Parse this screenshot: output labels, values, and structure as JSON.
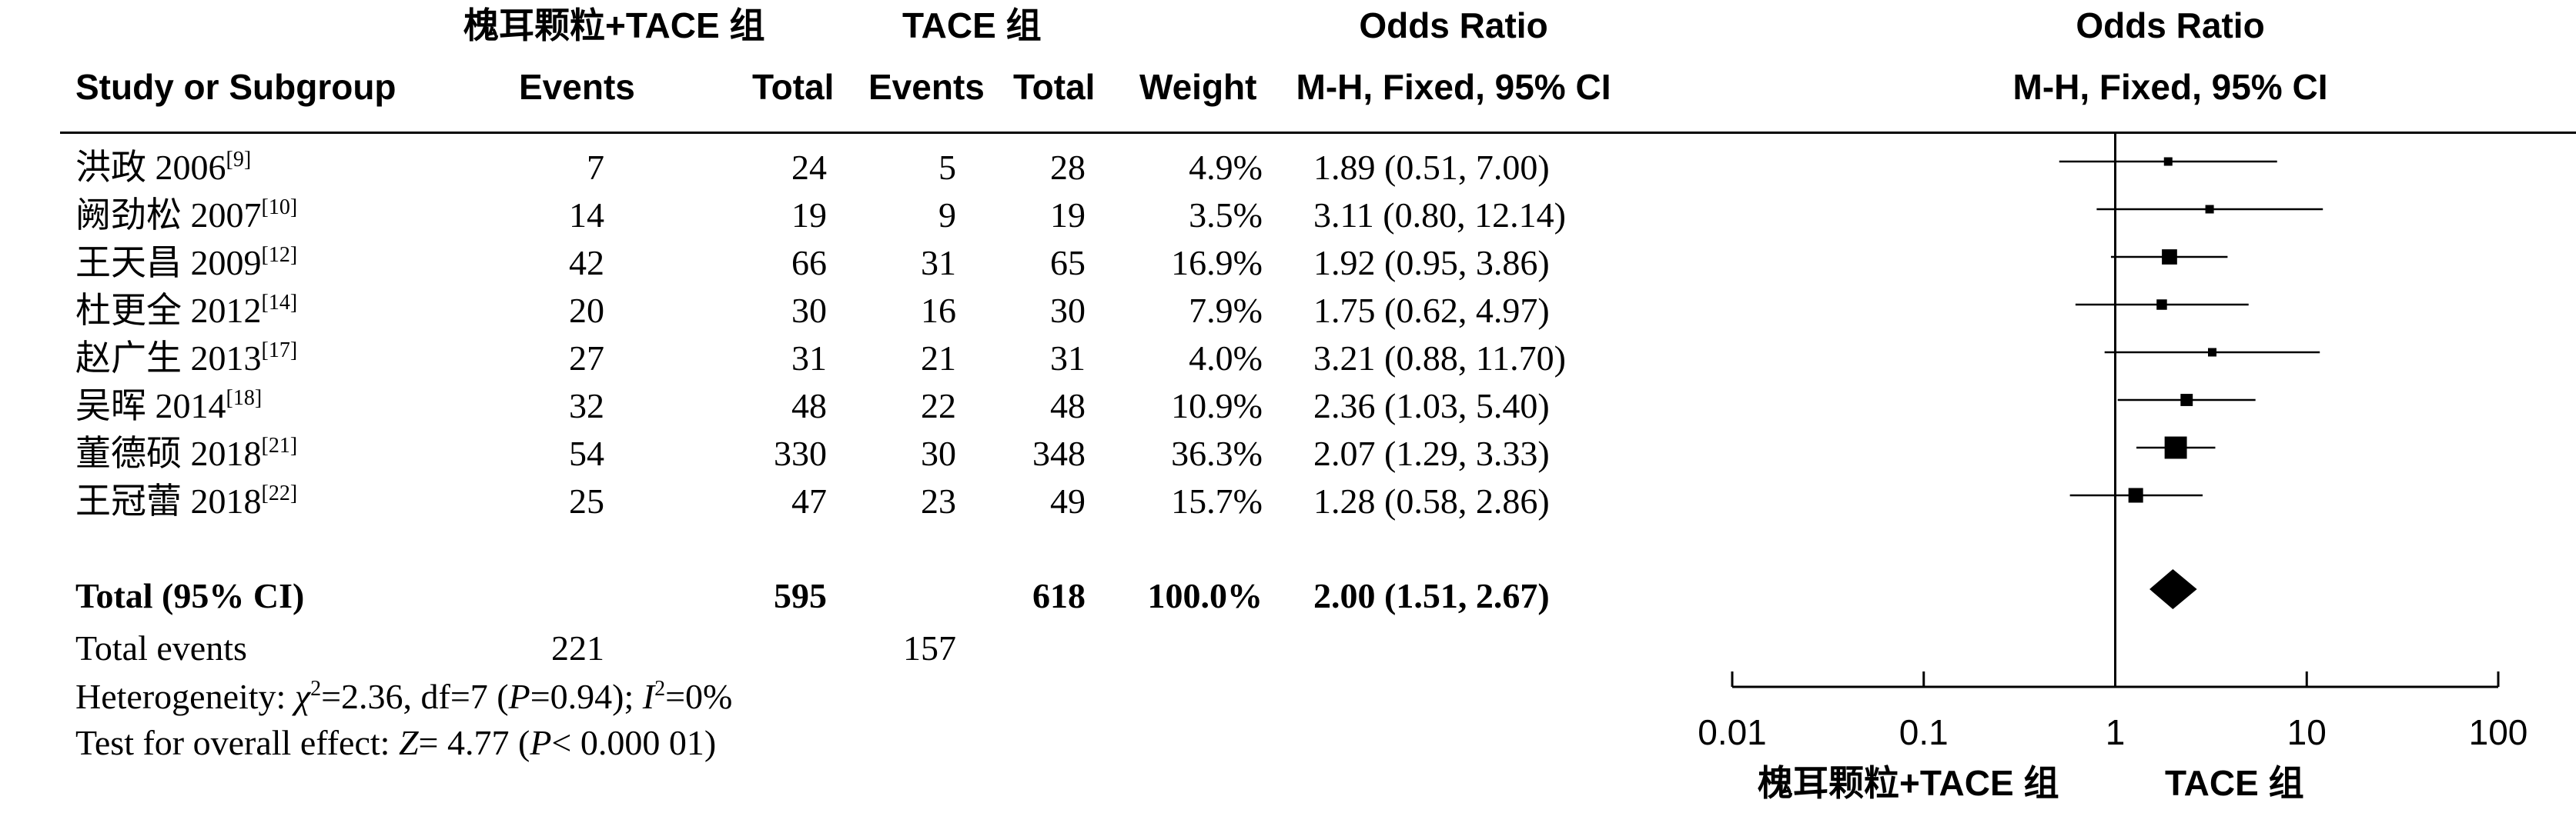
{
  "header": {
    "group_treat": "槐耳颗粒+TACE 组",
    "group_ctrl": "TACE 组",
    "or_top": "Odds Ratio",
    "or_method": "M-H, Fixed, 95% CI",
    "plot_top": "Odds Ratio",
    "plot_method": "M-H, Fixed, 95% CI",
    "col_study": "Study or Subgroup",
    "col_events_t": "Events",
    "col_total_t": "Total",
    "col_events_c": "Events",
    "col_total_c": "Total",
    "col_weight": "Weight"
  },
  "studies": [
    {
      "name": "洪政 2006",
      "ref": "[9]",
      "events_t": "7",
      "total_t": "24",
      "events_c": "5",
      "total_c": "28",
      "weight": "4.9%",
      "or_text": "1.89 (0.51, 7.00)"
    },
    {
      "name": "阙劲松 2007",
      "ref": "[10]",
      "events_t": "14",
      "total_t": "19",
      "events_c": "9",
      "total_c": "19",
      "weight": "3.5%",
      "or_text": "3.11 (0.80, 12.14)"
    },
    {
      "name": "王天昌 2009",
      "ref": "[12]",
      "events_t": "42",
      "total_t": "66",
      "events_c": "31",
      "total_c": "65",
      "weight": "16.9%",
      "or_text": "1.92 (0.95, 3.86)"
    },
    {
      "name": "杜更全 2012",
      "ref": "[14]",
      "events_t": "20",
      "total_t": "30",
      "events_c": "16",
      "total_c": "30",
      "weight": "7.9%",
      "or_text": "1.75 (0.62, 4.97)"
    },
    {
      "name": "赵广生 2013",
      "ref": "[17]",
      "events_t": "27",
      "total_t": "31",
      "events_c": "21",
      "total_c": "31",
      "weight": "4.0%",
      "or_text": "3.21 (0.88, 11.70)"
    },
    {
      "name": "吴晖 2014",
      "ref": "[18]",
      "events_t": "32",
      "total_t": "48",
      "events_c": "22",
      "total_c": "48",
      "weight": "10.9%",
      "or_text": "2.36 (1.03, 5.40)"
    },
    {
      "name": "董德硕 2018",
      "ref": "[21]",
      "events_t": "54",
      "total_t": "330",
      "events_c": "30",
      "total_c": "348",
      "weight": "36.3%",
      "or_text": "2.07 (1.29, 3.33)"
    },
    {
      "name": "王冠蕾 2018",
      "ref": "[22]",
      "events_t": "25",
      "total_t": "47",
      "events_c": "23",
      "total_c": "49",
      "weight": "15.7%",
      "or_text": "1.28 (0.58, 2.86)"
    }
  ],
  "total": {
    "label": "Total (95% CI)",
    "total_t": "595",
    "total_c": "618",
    "weight": "100.0%",
    "or_text": "2.00 (1.51, 2.67)"
  },
  "total_events": {
    "label": "Total events",
    "events_t": "221",
    "events_c": "157"
  },
  "heterogeneity": {
    "label": "Heterogeneity: ",
    "chi": "χ",
    "chi_sup": "2",
    "chi_val": "=2.36, df=7 (",
    "p": "P",
    "p_val": "=0.94); ",
    "i": "I",
    "i_sup": "2",
    "i_val": "=0%"
  },
  "overall": {
    "label": "Test for overall effect: ",
    "z": "Z",
    "z_val": "= 4.77 (",
    "p": "P",
    "p_val": "< 0.000 01)"
  },
  "axis_footer": {
    "left": "槐耳颗粒+TACE 组",
    "right": "TACE 组"
  },
  "chart_data": {
    "type": "scatter",
    "title": "Odds Ratio",
    "subtitle": "M-H, Fixed, 95% CI",
    "xscale": "log",
    "xlim": [
      0.01,
      100
    ],
    "xticks": [
      0.01,
      0.1,
      1,
      10,
      100
    ],
    "xtick_labels": [
      "0.01",
      "0.1",
      "1",
      "10",
      "100"
    ],
    "reference_line": 1,
    "points": [
      {
        "or": 1.89,
        "lo": 0.51,
        "hi": 7.0,
        "weight": 4.9
      },
      {
        "or": 3.11,
        "lo": 0.8,
        "hi": 12.14,
        "weight": 3.5
      },
      {
        "or": 1.92,
        "lo": 0.95,
        "hi": 3.86,
        "weight": 16.9
      },
      {
        "or": 1.75,
        "lo": 0.62,
        "hi": 4.97,
        "weight": 7.9
      },
      {
        "or": 3.21,
        "lo": 0.88,
        "hi": 11.7,
        "weight": 4.0
      },
      {
        "or": 2.36,
        "lo": 1.03,
        "hi": 5.4,
        "weight": 10.9
      },
      {
        "or": 2.07,
        "lo": 1.29,
        "hi": 3.33,
        "weight": 36.3
      },
      {
        "or": 1.28,
        "lo": 0.58,
        "hi": 2.86,
        "weight": 15.7
      }
    ],
    "pooled": {
      "or": 2.0,
      "lo": 1.51,
      "hi": 2.67
    },
    "colors": {
      "marks": "#000000"
    }
  }
}
